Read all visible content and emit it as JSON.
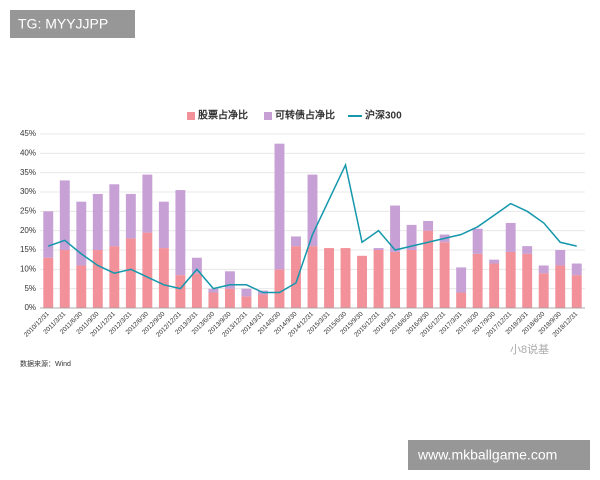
{
  "chart_data": {
    "type": "bar",
    "stacked": true,
    "categories": [
      "2010/12/31",
      "2011/3/31",
      "2011/6/30",
      "2011/9/30",
      "2011/12/31",
      "2012/3/31",
      "2012/6/30",
      "2012/9/30",
      "2012/12/31",
      "2013/3/31",
      "2013/6/30",
      "2013/9/30",
      "2013/12/31",
      "2014/3/31",
      "2014/6/30",
      "2014/9/30",
      "2014/12/31",
      "2015/3/31",
      "2015/6/30",
      "2015/9/30",
      "2015/12/31",
      "2016/3/31",
      "2016/6/30",
      "2016/9/30",
      "2016/12/31",
      "2017/3/31",
      "2017/6/30",
      "2017/9/30",
      "2017/12/31",
      "2018/3/31",
      "2018/6/30",
      "2018/9/30",
      "2018/12/31"
    ],
    "series": [
      {
        "name": "股票占净比",
        "color": "#f2919a",
        "values": [
          13,
          15,
          11,
          15,
          16,
          18,
          19.5,
          15.5,
          8.5,
          9,
          4,
          5,
          3,
          3.5,
          10,
          16,
          16,
          15.5,
          15.5,
          13.5,
          15,
          14.5,
          15,
          20,
          17,
          4,
          14,
          11.5,
          14.5,
          14,
          9,
          11,
          8.5
        ]
      },
      {
        "name": "可转债占净比",
        "color": "#c7a0d6",
        "values": [
          12,
          18,
          16.5,
          14.5,
          16,
          11.5,
          15,
          12,
          22,
          4,
          1,
          4.5,
          2,
          1,
          32.5,
          2.5,
          18.5,
          0,
          0,
          0,
          0.5,
          12,
          6.5,
          2.5,
          2,
          6.5,
          6.5,
          1,
          7.5,
          2,
          2,
          4,
          3
        ]
      },
      {
        "name": "沪深300",
        "type": "line",
        "color": "#1597ac",
        "values": [
          16,
          17.5,
          14,
          11,
          9,
          10,
          8,
          6,
          5,
          10,
          5,
          6,
          6,
          4,
          4,
          6.5,
          19,
          28,
          37,
          17,
          20,
          15,
          16,
          17,
          18,
          19,
          21,
          24,
          27,
          25,
          22,
          17,
          16
        ]
      }
    ],
    "ylim": [
      0,
      45
    ],
    "yticks": [
      {
        "value": 0,
        "label": "0%"
      },
      {
        "value": 5,
        "label": "5%"
      },
      {
        "value": 10,
        "label": "10%"
      },
      {
        "value": 15,
        "label": "15%"
      },
      {
        "value": 20,
        "label": "20%"
      },
      {
        "value": 25,
        "label": "25%"
      },
      {
        "value": 30,
        "label": "30%"
      },
      {
        "value": 35,
        "label": "35%"
      },
      {
        "value": 40,
        "label": "40%"
      },
      {
        "value": 45,
        "label": "45%"
      }
    ],
    "grid": true,
    "legend": "top",
    "source": "数据来源：Wind"
  },
  "overlays": {
    "top_left": "TG: MYYJJPP",
    "bottom_right": "www.mkballgame.com",
    "watermark": "小8说基"
  }
}
